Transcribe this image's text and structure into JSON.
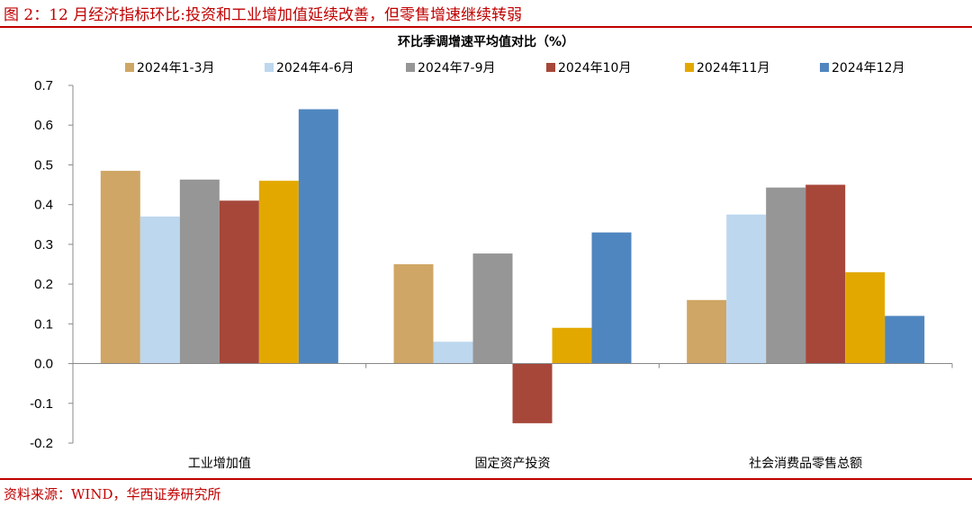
{
  "figure": {
    "title": "图 2：12 月经济指标环比:投资和工业增加值延续改善，但零售增速继续转弱",
    "source": "资料来源：WIND，华西证券研究所"
  },
  "chart_data": {
    "type": "bar",
    "title": "环比季调增速平均值对比（%）",
    "categories": [
      "工业增加值",
      "固定资产投资",
      "社会消费品零售总额"
    ],
    "series": [
      {
        "name": "2024年1-3月",
        "color": "#CFA665",
        "values": [
          0.485,
          0.25,
          0.16
        ]
      },
      {
        "name": "2024年4-6月",
        "color": "#BDD7EE",
        "values": [
          0.37,
          0.055,
          0.375
        ]
      },
      {
        "name": "2024年7-9月",
        "color": "#969696",
        "values": [
          0.463,
          0.277,
          0.443
        ]
      },
      {
        "name": "2024年10月",
        "color": "#A6473A",
        "values": [
          0.41,
          -0.15,
          0.45
        ]
      },
      {
        "name": "2024年11月",
        "color": "#E3A800",
        "values": [
          0.46,
          0.09,
          0.23
        ]
      },
      {
        "name": "2024年12月",
        "color": "#4F86BF",
        "values": [
          0.64,
          0.33,
          0.12
        ]
      }
    ],
    "ylim": [
      -0.2,
      0.7
    ],
    "yticks": [
      "0.7",
      "0.6",
      "0.5",
      "0.4",
      "0.3",
      "0.2",
      "0.1",
      "0.0",
      "-0.1",
      "-0.2"
    ],
    "xlabel": "",
    "ylabel": "",
    "grid": false,
    "legend_position": "top"
  }
}
